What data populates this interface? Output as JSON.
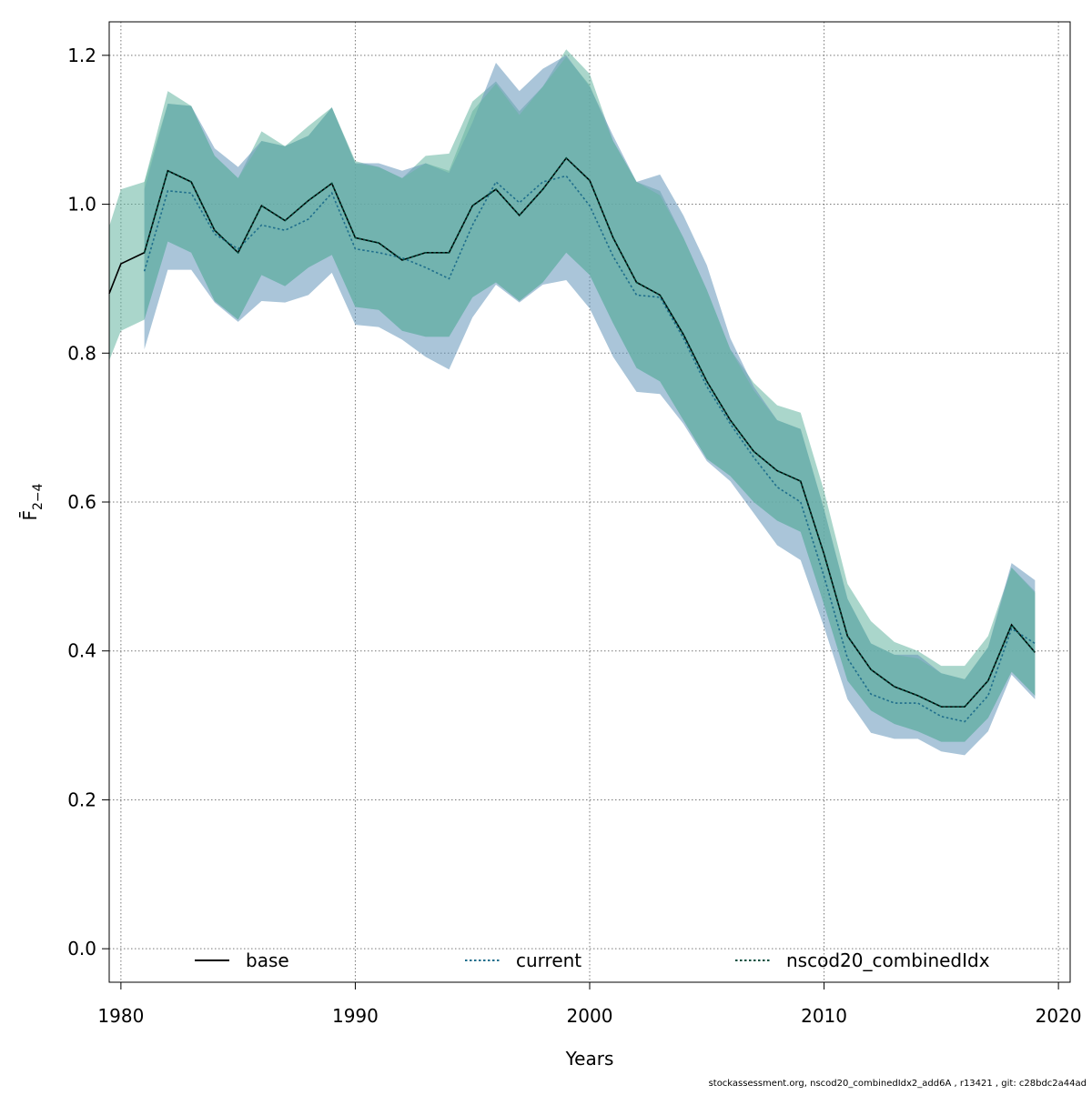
{
  "chart_data": {
    "type": "line",
    "title": "",
    "xlabel": "Years",
    "ylabel": "F̄",
    "ylabel_subscript": "2−4",
    "xlim": [
      1979.5,
      2020.5
    ],
    "ylim": [
      -0.045,
      1.245
    ],
    "xticks": [
      1980,
      1990,
      2000,
      2010,
      2020
    ],
    "yticks": [
      0.0,
      0.2,
      0.4,
      0.6,
      0.8,
      1.0,
      1.2
    ],
    "ytick_labels": [
      "0.0",
      "0.2",
      "0.4",
      "0.6",
      "0.8",
      "1.0",
      "1.2"
    ],
    "grid": true,
    "legend_position": "bottom",
    "series": [
      {
        "name": "base",
        "line_style": "solid",
        "line_color": "#000000",
        "band_color": "#64b4a0",
        "x": [
          1979,
          1980,
          1981,
          1982,
          1983,
          1984,
          1985,
          1986,
          1987,
          1988,
          1989,
          1990,
          1991,
          1992,
          1993,
          1994,
          1995,
          1996,
          1997,
          1998,
          1999,
          2000,
          2001,
          2002,
          2003,
          2004,
          2005,
          2006,
          2007,
          2008,
          2009,
          2010,
          2011,
          2012,
          2013,
          2014,
          2015,
          2016,
          2017,
          2018,
          2019
        ],
        "values": [
          0.88,
          0.92,
          0.935,
          1.045,
          1.03,
          0.965,
          0.935,
          0.998,
          0.978,
          1.005,
          1.028,
          0.955,
          0.948,
          0.925,
          0.935,
          0.935,
          0.998,
          1.02,
          0.985,
          1.02,
          1.062,
          1.032,
          0.955,
          0.895,
          0.878,
          0.825,
          0.762,
          0.71,
          0.668,
          0.642,
          0.628,
          0.53,
          0.42,
          0.375,
          0.352,
          0.34,
          0.325,
          0.325,
          0.36,
          0.435,
          0.398
        ],
        "lower": [
          0.79,
          0.83,
          0.845,
          0.95,
          0.935,
          0.87,
          0.845,
          0.905,
          0.89,
          0.915,
          0.932,
          0.862,
          0.858,
          0.83,
          0.822,
          0.822,
          0.875,
          0.895,
          0.87,
          0.895,
          0.935,
          0.905,
          0.84,
          0.78,
          0.762,
          0.71,
          0.658,
          0.635,
          0.6,
          0.575,
          0.56,
          0.462,
          0.36,
          0.32,
          0.302,
          0.292,
          0.278,
          0.278,
          0.31,
          0.372,
          0.34
        ],
        "upper": [
          0.97,
          1.02,
          1.03,
          1.152,
          1.132,
          1.065,
          1.035,
          1.098,
          1.078,
          1.105,
          1.13,
          1.058,
          1.05,
          1.035,
          1.065,
          1.068,
          1.138,
          1.165,
          1.125,
          1.158,
          1.208,
          1.175,
          1.085,
          1.03,
          1.018,
          0.955,
          0.885,
          0.805,
          0.76,
          0.73,
          0.72,
          0.615,
          0.49,
          0.44,
          0.412,
          0.4,
          0.38,
          0.38,
          0.42,
          0.512,
          0.48
        ]
      },
      {
        "name": "current",
        "line_style": "dotted",
        "line_color": "#1f6e8c",
        "band_color": "#6495b9",
        "x": [
          1981,
          1982,
          1983,
          1984,
          1985,
          1986,
          1987,
          1988,
          1989,
          1990,
          1991,
          1992,
          1993,
          1994,
          1995,
          1996,
          1997,
          1998,
          1999,
          2000,
          2001,
          2002,
          2003,
          2004,
          2005,
          2006,
          2007,
          2008,
          2009,
          2010,
          2011,
          2012,
          2013,
          2014,
          2015,
          2016,
          2017,
          2018,
          2019
        ],
        "values": [
          0.91,
          1.018,
          1.015,
          0.96,
          0.94,
          0.972,
          0.965,
          0.98,
          1.015,
          0.94,
          0.935,
          0.928,
          0.915,
          0.9,
          0.972,
          1.03,
          1.002,
          1.03,
          1.038,
          0.998,
          0.93,
          0.878,
          0.875,
          0.82,
          0.755,
          0.705,
          0.66,
          0.62,
          0.6,
          0.5,
          0.39,
          0.342,
          0.33,
          0.33,
          0.312,
          0.305,
          0.34,
          0.43,
          0.41
        ],
        "lower": [
          0.805,
          0.912,
          0.912,
          0.868,
          0.842,
          0.87,
          0.868,
          0.878,
          0.908,
          0.838,
          0.835,
          0.818,
          0.795,
          0.778,
          0.848,
          0.892,
          0.868,
          0.892,
          0.898,
          0.86,
          0.795,
          0.748,
          0.745,
          0.705,
          0.655,
          0.628,
          0.585,
          0.542,
          0.522,
          0.432,
          0.335,
          0.29,
          0.282,
          0.282,
          0.265,
          0.26,
          0.292,
          0.368,
          0.335
        ],
        "upper": [
          1.02,
          1.135,
          1.132,
          1.075,
          1.05,
          1.085,
          1.078,
          1.092,
          1.13,
          1.055,
          1.055,
          1.045,
          1.055,
          1.042,
          1.11,
          1.19,
          1.152,
          1.182,
          1.2,
          1.158,
          1.092,
          1.03,
          1.04,
          0.985,
          0.918,
          0.82,
          0.755,
          0.71,
          0.698,
          0.59,
          0.47,
          0.41,
          0.395,
          0.395,
          0.37,
          0.362,
          0.405,
          0.518,
          0.495
        ]
      },
      {
        "name": "nscod20_combinedIdx",
        "line_style": "dotted",
        "line_color": "#004d3d",
        "band_color": "#64b4a0",
        "x": [
          1981,
          1982,
          1983,
          1984,
          1985,
          1986,
          1987,
          1988,
          1989,
          1990,
          1991,
          1992,
          1993,
          1994,
          1995,
          1996,
          1997,
          1998,
          1999,
          2000,
          2001,
          2002,
          2003,
          2004,
          2005,
          2006,
          2007,
          2008,
          2009,
          2010,
          2011,
          2012,
          2013,
          2014,
          2015,
          2016,
          2017,
          2018,
          2019
        ],
        "values": [
          0.935,
          1.045,
          1.03,
          0.965,
          0.935,
          0.998,
          0.978,
          1.005,
          1.028,
          0.955,
          0.948,
          0.925,
          0.935,
          0.935,
          0.998,
          1.02,
          0.985,
          1.02,
          1.062,
          1.032,
          0.955,
          0.895,
          0.878,
          0.825,
          0.762,
          0.71,
          0.668,
          0.642,
          0.628,
          0.53,
          0.42,
          0.375,
          0.352,
          0.34,
          0.325,
          0.325,
          0.36,
          0.435,
          0.398
        ],
        "lower": [
          0.845,
          0.95,
          0.935,
          0.87,
          0.845,
          0.905,
          0.89,
          0.915,
          0.932,
          0.862,
          0.858,
          0.83,
          0.822,
          0.822,
          0.875,
          0.895,
          0.87,
          0.895,
          0.935,
          0.905,
          0.84,
          0.78,
          0.762,
          0.71,
          0.658,
          0.635,
          0.6,
          0.575,
          0.56,
          0.462,
          0.36,
          0.32,
          0.302,
          0.292,
          0.278,
          0.278,
          0.31,
          0.372,
          0.34
        ],
        "upper": [
          1.03,
          1.135,
          1.132,
          1.065,
          1.035,
          1.085,
          1.078,
          1.092,
          1.13,
          1.055,
          1.05,
          1.035,
          1.055,
          1.045,
          1.125,
          1.162,
          1.12,
          1.158,
          1.198,
          1.16,
          1.085,
          1.03,
          1.012,
          0.955,
          0.885,
          0.805,
          0.75,
          0.71,
          0.698,
          0.59,
          0.47,
          0.41,
          0.395,
          0.39,
          0.37,
          0.362,
          0.405,
          0.512,
          0.478
        ]
      }
    ]
  },
  "footer": {
    "text": "stockassessment.org, nscod20_combinedIdx2_add6A , r13421 , git: c28bdc2a44ad"
  }
}
